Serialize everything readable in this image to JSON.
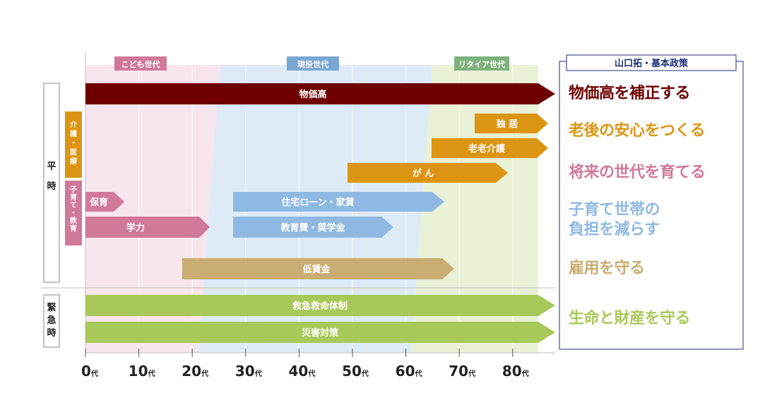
{
  "eras": [
    {
      "label": "こども世代",
      "color": "#d1799a"
    },
    {
      "label": "現役世代",
      "color": "#7ba7d4"
    },
    {
      "label": "リタイア世代",
      "color": "#7fb17d"
    }
  ],
  "sections": {
    "normal": "平時",
    "emergency": "緊急時",
    "care": "介護・医療",
    "childcare": "子育て・教育"
  },
  "axis": {
    "unit": "代",
    "ticks": [
      0,
      10,
      20,
      30,
      40,
      50,
      60,
      70,
      80
    ]
  },
  "bars": [
    {
      "label": "物価高",
      "color": "#6e0000",
      "text_color": "#ffffff"
    },
    {
      "label": "独 居",
      "color": "#dc9513",
      "text_color": "#ffffff"
    },
    {
      "label": "老老介護",
      "color": "#dc9513",
      "text_color": "#ffffff"
    },
    {
      "label": "が ん",
      "color": "#dc9513",
      "text_color": "#ffffff"
    },
    {
      "label": "保育",
      "color": "#d1799a",
      "text_color": "#ffffff"
    },
    {
      "label": "学力",
      "color": "#d1799a",
      "text_color": "#ffffff"
    },
    {
      "label": "住宅ローン・家賃",
      "color": "#8fb9e3",
      "text_color": "#ffffff"
    },
    {
      "label": "教育費・奨学金",
      "color": "#8fb9e3",
      "text_color": "#ffffff"
    },
    {
      "label": "低賃金",
      "color": "#c9ad72",
      "text_color": "#ffffff"
    },
    {
      "label": "救急救命体制",
      "color": "#a8c95a",
      "text_color": "#ffffff"
    },
    {
      "label": "災害対策",
      "color": "#a8c95a",
      "text_color": "#ffffff"
    }
  ],
  "policy": {
    "title": "山口拓・基本政策",
    "title_color": "#1d2f7a",
    "items": [
      {
        "lines": [
          "物価高を補正する"
        ],
        "color": "#6e0000"
      },
      {
        "lines": [
          "老後の安心をつくる"
        ],
        "color": "#dc9513"
      },
      {
        "lines": [
          "将来の世代を育てる"
        ],
        "color": "#d1799a"
      },
      {
        "lines": [
          "子育て世帯の",
          "負担を減らす"
        ],
        "color": "#8fb9e3"
      },
      {
        "lines": [
          "雇用を守る"
        ],
        "color": "#c9ad72"
      },
      {
        "lines": [
          "生命と財産を守る"
        ],
        "color": "#a8c95a"
      }
    ]
  }
}
